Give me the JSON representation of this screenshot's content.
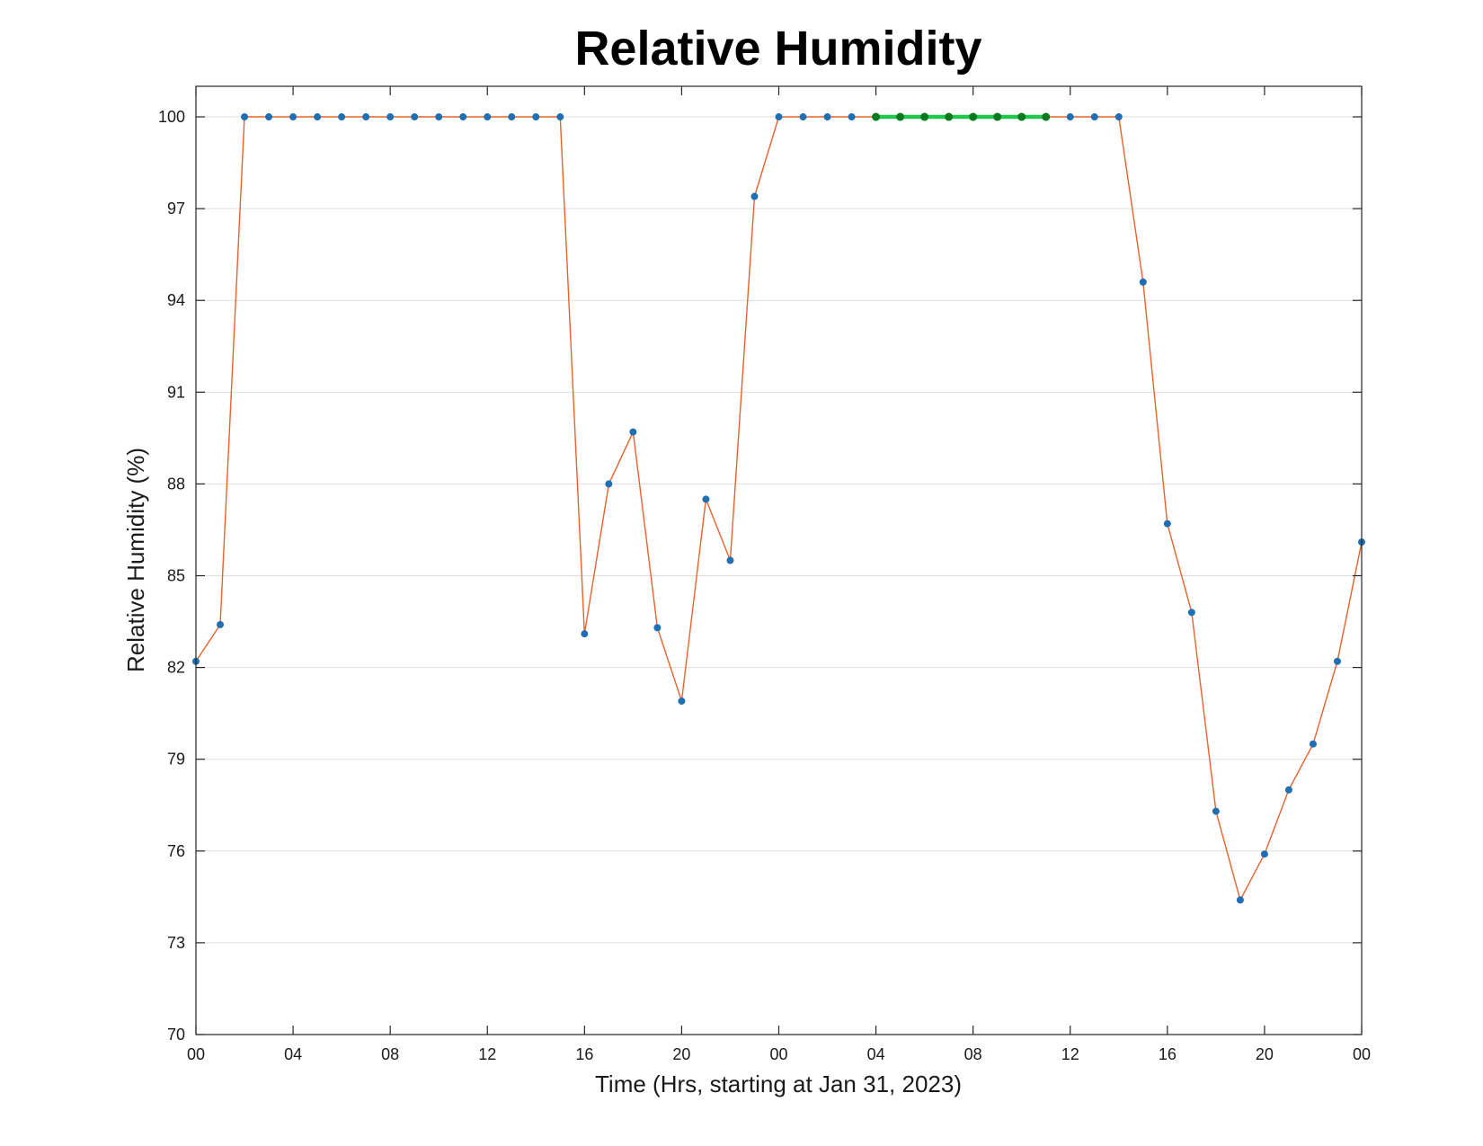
{
  "chart_data": {
    "type": "line",
    "title": "Relative Humidity",
    "xlabel": "Time (Hrs, starting at Jan 31, 2023)",
    "ylabel": "Relative Humidity (%)",
    "ylim": [
      70,
      101
    ],
    "xlim": [
      0,
      48
    ],
    "grid": "horizontal",
    "x_ticks": [
      0,
      4,
      8,
      12,
      16,
      20,
      24,
      28,
      32,
      36,
      40,
      44,
      48
    ],
    "x_tick_labels": [
      "00",
      "04",
      "08",
      "12",
      "16",
      "20",
      "00",
      "04",
      "08",
      "12",
      "16",
      "20",
      "00"
    ],
    "y_ticks": [
      70,
      73,
      76,
      79,
      82,
      85,
      88,
      91,
      94,
      97,
      100
    ],
    "y_tick_labels": [
      "70",
      "73",
      "76",
      "79",
      "82",
      "85",
      "88",
      "91",
      "94",
      "97",
      "100"
    ],
    "series": [
      {
        "line_color": "#e8622a",
        "marker_color": "#1f6fb2",
        "x": [
          0,
          1,
          2,
          3,
          4,
          5,
          6,
          7,
          8,
          9,
          10,
          11,
          12,
          13,
          14,
          15,
          16,
          17,
          18,
          19,
          20,
          21,
          22,
          23,
          24,
          25,
          26,
          27,
          28,
          29,
          30,
          31,
          32,
          33,
          34,
          35,
          36,
          37,
          38,
          39,
          40,
          41,
          42,
          43,
          44,
          45,
          46,
          47,
          48
        ],
        "y": [
          82.2,
          83.4,
          100,
          100,
          100,
          100,
          100,
          100,
          100,
          100,
          100,
          100,
          100,
          100,
          100,
          100,
          83.1,
          88.0,
          89.7,
          83.3,
          80.9,
          87.5,
          85.5,
          97.4,
          100,
          100,
          100,
          100,
          100,
          100,
          100,
          100,
          100,
          100,
          100,
          100,
          100,
          100,
          100,
          94.6,
          86.7,
          83.8,
          77.3,
          74.4,
          75.9,
          78.0,
          79.5,
          82.2,
          86.1
        ]
      },
      {
        "line_color": "#1fc84a",
        "marker_color": "#0a7a1e",
        "x": [
          28,
          29,
          30,
          31,
          32,
          33,
          34,
          35
        ],
        "y": [
          100,
          100,
          100,
          100,
          100,
          100,
          100,
          100
        ]
      }
    ]
  }
}
